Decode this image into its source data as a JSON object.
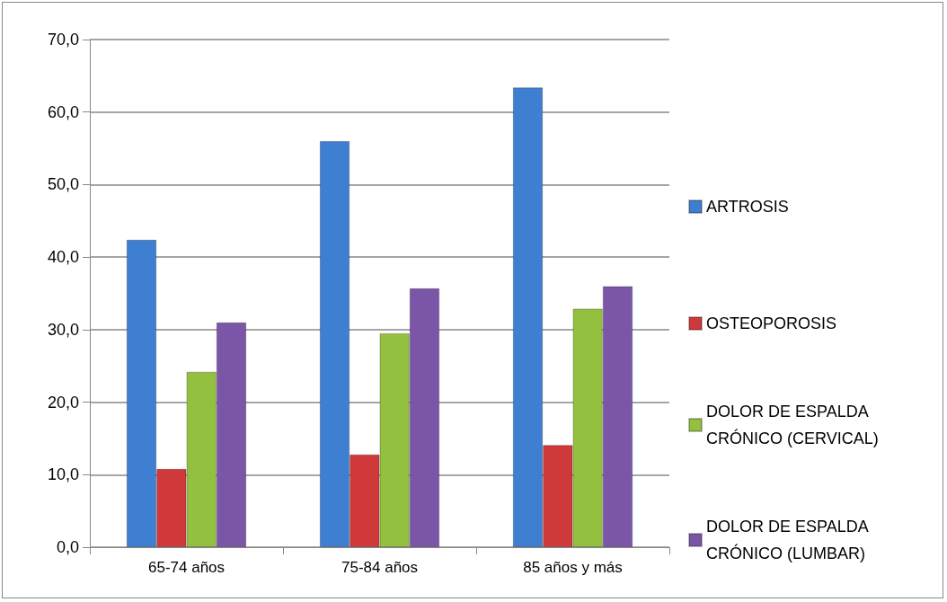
{
  "chart_data": {
    "type": "bar",
    "categories": [
      "65-74 años",
      "75-84 años",
      "85 años y más"
    ],
    "series": [
      {
        "name": "ARTROSIS",
        "color": "#3f7fd1",
        "values": [
          42.4,
          56.0,
          63.4
        ]
      },
      {
        "name": "OSTEOPOROSIS",
        "color": "#d0393a",
        "values": [
          10.8,
          12.8,
          14.1
        ]
      },
      {
        "name": "DOLOR DE ESPALDA CRÓNICO (CERVICAL)",
        "color": "#93c13f",
        "values": [
          24.2,
          29.5,
          32.9
        ]
      },
      {
        "name": "DOLOR DE ESPALDA CRÓNICO (LUMBAR)",
        "color": "#7a55a8",
        "values": [
          31.0,
          35.7,
          36.0
        ]
      }
    ],
    "ylim": [
      0,
      70
    ],
    "yticks": [
      {
        "value": 0,
        "label": "0,0"
      },
      {
        "value": 10,
        "label": "10,0"
      },
      {
        "value": 20,
        "label": "20,0"
      },
      {
        "value": 30,
        "label": "30,0"
      },
      {
        "value": 40,
        "label": "40,0"
      },
      {
        "value": 50,
        "label": "50,0"
      },
      {
        "value": 60,
        "label": "60,0"
      },
      {
        "value": 70,
        "label": "70,0"
      }
    ],
    "grid": "y",
    "legend": "right"
  }
}
